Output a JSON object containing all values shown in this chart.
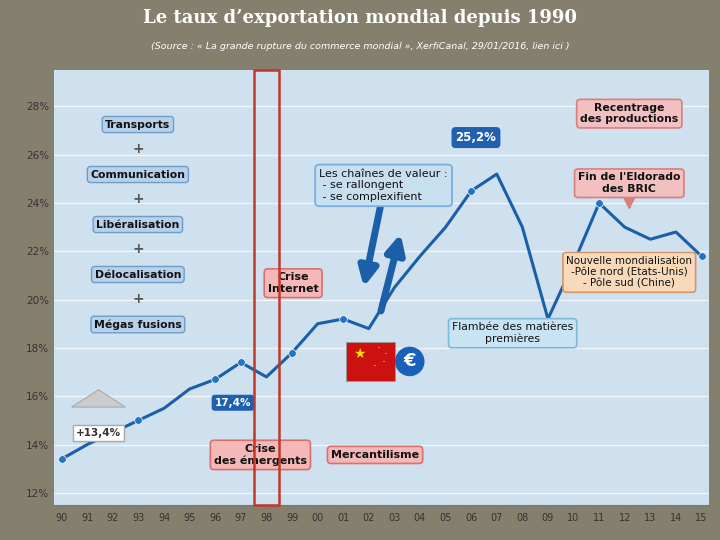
{
  "title": "Le taux d’exportation mondial depuis 1990",
  "subtitle": "(Source : « La grande rupture du commerce mondial », XerfiCanal, 29/01/2016, lien ici )",
  "header_bg": "#857f6e",
  "chart_bg": "#cfe0ef",
  "footer_bg": "#6fa0a0",
  "year_labels": [
    "90",
    "91",
    "92",
    "93",
    "94",
    "95",
    "96",
    "97",
    "98",
    "99",
    "00",
    "01",
    "02",
    "03",
    "04",
    "05",
    "06",
    "07",
    "08",
    "09",
    "10",
    "11",
    "12",
    "13",
    "14",
    "15"
  ],
  "values": [
    13.4,
    14.0,
    14.5,
    15.0,
    15.5,
    16.3,
    16.7,
    17.4,
    16.8,
    17.8,
    19.0,
    19.2,
    18.8,
    20.5,
    21.8,
    23.0,
    24.5,
    25.2,
    23.0,
    19.2,
    21.5,
    24.0,
    23.0,
    22.5,
    22.8,
    21.8
  ],
  "ylim": [
    11.5,
    29.5
  ],
  "yticks": [
    12,
    14,
    16,
    18,
    20,
    22,
    24,
    26,
    28
  ],
  "ytick_labels": [
    "12%",
    "14%",
    "16%",
    "18%",
    "20%",
    "22%",
    "24%",
    "26%",
    "28%"
  ],
  "line_color": "#1a5fa8",
  "dot_color": "#2175c5",
  "dot_indices": [
    0,
    3,
    6,
    7,
    9,
    11,
    16,
    21,
    25
  ],
  "highlight_year_index": 8,
  "highlight_box_color": "#c0392b"
}
